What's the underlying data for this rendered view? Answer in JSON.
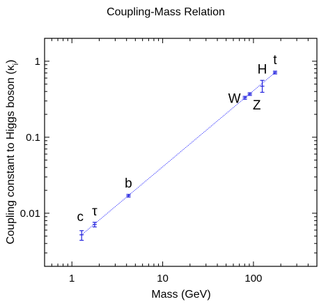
{
  "chart_data": {
    "type": "scatter",
    "title": "Coupling-Mass Relation",
    "xlabel": "Mass (GeV)",
    "ylabel": "Coupling constant to Higgs boson (κ",
    "ylabel_sub": "i",
    "ylabel_close": ")",
    "xscale": "log",
    "yscale": "log",
    "xlim": [
      0.5,
      500
    ],
    "ylim": [
      0.002,
      2
    ],
    "xticks": [
      {
        "value": 1,
        "label": "1"
      },
      {
        "value": 10,
        "label": "10"
      },
      {
        "value": 100,
        "label": "100"
      }
    ],
    "yticks": [
      {
        "value": 0.01,
        "label": "0.01"
      },
      {
        "value": 0.1,
        "label": "0.1"
      },
      {
        "value": 1,
        "label": "1"
      }
    ],
    "fit_line": {
      "x": [
        1.28,
        173
      ],
      "y": [
        0.0052,
        0.71
      ],
      "color": "#3333ff",
      "style": "dotted"
    },
    "series": [
      {
        "color": "#2222dd",
        "points": [
          {
            "label": "c",
            "x": 1.28,
            "y": 0.0052,
            "y_low": 0.0044,
            "y_high": 0.0059,
            "label_pos": "above-left"
          },
          {
            "label": "τ",
            "x": 1.78,
            "y": 0.0071,
            "y_low": 0.0066,
            "y_high": 0.0076,
            "label_pos": "above"
          },
          {
            "label": "b",
            "x": 4.2,
            "y": 0.017,
            "y_low": 0.0163,
            "y_high": 0.0177,
            "label_pos": "above"
          },
          {
            "label": "W",
            "x": 80.4,
            "y": 0.33,
            "y_low": 0.315,
            "y_high": 0.345,
            "label_pos": "left"
          },
          {
            "label": "Z",
            "x": 91.2,
            "y": 0.37,
            "y_low": 0.355,
            "y_high": 0.385,
            "label_pos": "below-right"
          },
          {
            "label": "H",
            "x": 125,
            "y": 0.47,
            "y_low": 0.39,
            "y_high": 0.56,
            "label_pos": "above"
          },
          {
            "label": "t",
            "x": 173,
            "y": 0.71,
            "y_low": 0.68,
            "y_high": 0.74,
            "label_pos": "above"
          }
        ]
      }
    ]
  }
}
